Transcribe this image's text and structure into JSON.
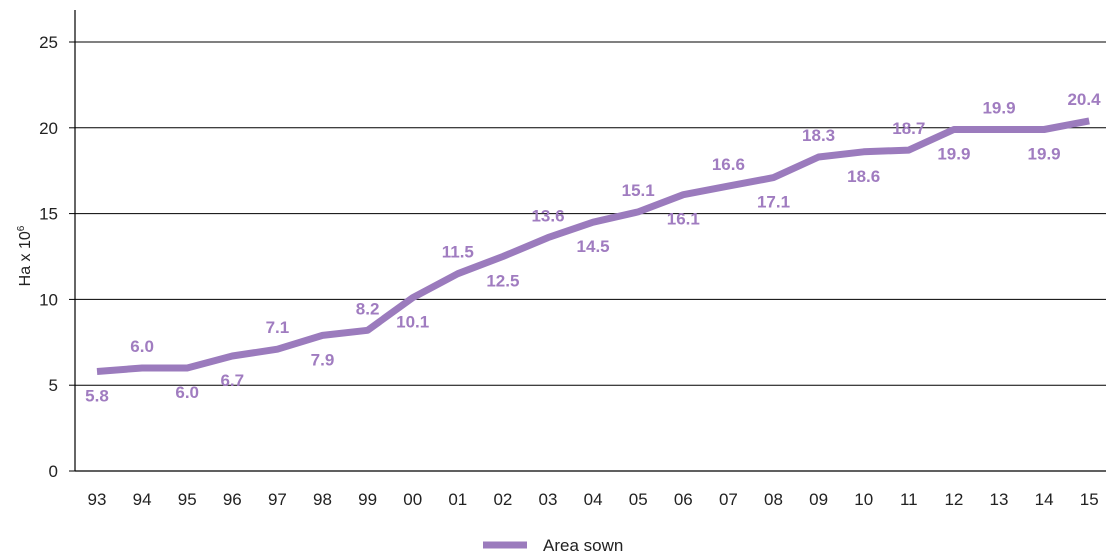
{
  "chart_data": {
    "type": "line",
    "categories": [
      "93",
      "94",
      "95",
      "96",
      "97",
      "98",
      "99",
      "00",
      "01",
      "02",
      "03",
      "04",
      "05",
      "06",
      "07",
      "08",
      "09",
      "10",
      "11",
      "12",
      "13",
      "14",
      "15"
    ],
    "series": [
      {
        "name": "Area sown",
        "values": [
          5.8,
          6.0,
          6.0,
          6.7,
          7.1,
          7.9,
          8.2,
          10.1,
          11.5,
          12.5,
          13.6,
          14.5,
          15.1,
          16.1,
          16.6,
          17.1,
          18.3,
          18.6,
          18.7,
          19.9,
          19.9,
          19.9,
          20.4
        ],
        "labels": [
          "5.8",
          "6.0",
          "6.0",
          "6.7",
          "7.1",
          "7.9",
          "8.2",
          "10.1",
          "11.5",
          "12.5",
          "13.6",
          "14.5",
          "15.1",
          "16.1",
          "16.6",
          "17.1",
          "18.3",
          "18.6",
          "18.7",
          "19.9",
          "19.9",
          "19.9",
          "20.4"
        ],
        "label_positions": [
          "below",
          "above",
          "below",
          "below",
          "above",
          "below",
          "above",
          "below",
          "above",
          "below",
          "above",
          "below",
          "above",
          "below",
          "above",
          "below",
          "above",
          "below",
          "above",
          "below",
          "above",
          "below",
          "above"
        ],
        "color": "#9b7bbd"
      }
    ],
    "ylabel_main": "Ha x 10",
    "ylabel_sup": "6",
    "ylim": [
      0,
      25
    ],
    "yticks": [
      "0",
      "5",
      "10",
      "15",
      "20",
      "25"
    ],
    "grid": true,
    "legend": "bottom-center"
  }
}
